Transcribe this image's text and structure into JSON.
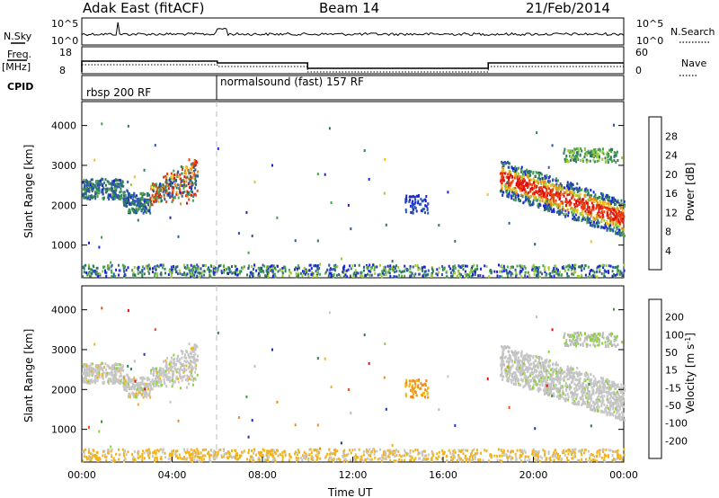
{
  "header": {
    "station": "Adak East (fitACF)",
    "beam": "Beam 14",
    "date": "21/Feb/2014"
  },
  "nsky_panel": {
    "label": "N.Sky",
    "right_label": "N.Search",
    "left_ticks": [
      "10^5",
      "10^0"
    ],
    "right_ticks": [
      "10^5",
      "10^0"
    ]
  },
  "freq_panel": {
    "label_line1": "Freq.",
    "label_line2": "[MHz]",
    "right_label": "Nave",
    "left_ticks": [
      "18",
      "8"
    ],
    "right_ticks": [
      "60",
      "0"
    ],
    "freq_steps": [
      {
        "t0": 0,
        "t1": 6,
        "v": 14
      },
      {
        "t0": 6,
        "t1": 10,
        "v": 13
      },
      {
        "t0": 10,
        "t1": 18,
        "v": 10
      },
      {
        "t0": 18,
        "t1": 24,
        "v": 13
      }
    ]
  },
  "cpid_panel": {
    "label": "CPID",
    "modes": [
      {
        "start": 0,
        "text": "rbsp 200 RF"
      },
      {
        "start": 6,
        "text": "normalsound (fast) 157 RF"
      }
    ]
  },
  "colorbars": {
    "power": {
      "title": "Power [dB]",
      "ticks": [
        "4",
        "8",
        "12",
        "16",
        "20",
        "24",
        "28"
      ],
      "colors": [
        "#1a22d8",
        "#2c56aa",
        "#2f7a5c",
        "#48a34c",
        "#9bc83c",
        "#f2c01a",
        "#f28a14",
        "#e8400e",
        "#e00d0d"
      ]
    },
    "velocity": {
      "title": "Velocity [m s-1]",
      "ticks": [
        "-200",
        "-100",
        "-50",
        "-15",
        "15",
        "50",
        "100",
        "200"
      ],
      "colors": [
        "#e00d0d",
        "#f04a10",
        "#f28a14",
        "#f2b31a",
        "#c6c6c6",
        "#bcbcbc",
        "#8ed23a",
        "#3f9a3a",
        "#2a7a5a",
        "#1a30c0"
      ]
    }
  },
  "chart_data": [
    {
      "type": "heatmap",
      "title": "",
      "xlabel": "Time UT",
      "ylabel": "Slant Range [km]",
      "xlim": [
        0,
        24
      ],
      "ylim": [
        180,
        4600
      ],
      "yticks": [
        "1000",
        "2000",
        "3000",
        "4000"
      ],
      "xticks": [
        "00:00",
        "04:00",
        "08:00",
        "12:00",
        "16:00",
        "20:00",
        "00:00"
      ],
      "colorbar": "Power [dB]",
      "scatter_regions": [
        {
          "t0": 0,
          "t1": 5.2,
          "note": "band ~2000-3500 km rising with time"
        },
        {
          "t0": 18.5,
          "t1": 24,
          "note": "band ~1500-3000 km descending with time"
        }
      ]
    },
    {
      "type": "heatmap",
      "title": "",
      "xlabel": "Time UT",
      "ylabel": "Slant Range [km]",
      "xlim": [
        0,
        24
      ],
      "ylim": [
        180,
        4600
      ],
      "yticks": [
        "1000",
        "2000",
        "3000",
        "4000"
      ],
      "xticks": [
        "00:00",
        "04:00",
        "08:00",
        "12:00",
        "16:00",
        "20:00",
        "00:00"
      ],
      "colorbar": "Velocity [m s-1]"
    }
  ]
}
